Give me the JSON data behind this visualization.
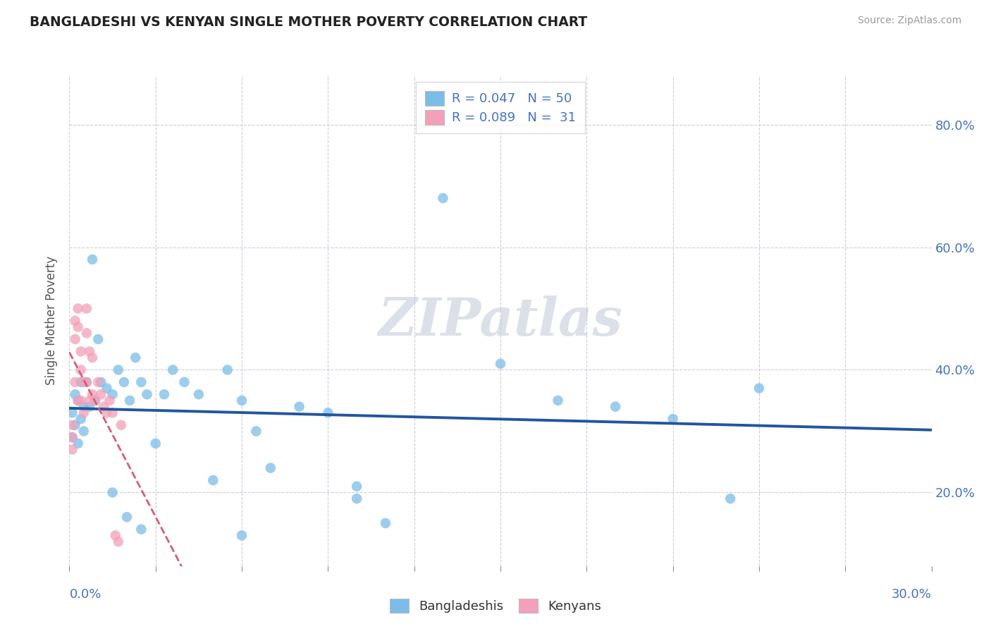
{
  "title": "BANGLADESHI VS KENYAN SINGLE MOTHER POVERTY CORRELATION CHART",
  "source": "Source: ZipAtlas.com",
  "ylabel": "Single Mother Poverty",
  "yticks": [
    0.2,
    0.4,
    0.6,
    0.8
  ],
  "xlim": [
    0.0,
    0.3
  ],
  "ylim": [
    0.08,
    0.88
  ],
  "blue_color": "#7BBDE8",
  "pink_color": "#F4A0B8",
  "blue_line_color": "#2255A0",
  "pink_line_color": "#D06070",
  "pink_line_style": "--",
  "watermark": "ZIPatlas",
  "R_blue": 0.047,
  "N_blue": 50,
  "R_pink": 0.089,
  "N_pink": 31,
  "blue_x": [
    0.001,
    0.001,
    0.002,
    0.002,
    0.003,
    0.003,
    0.004,
    0.004,
    0.005,
    0.005,
    0.006,
    0.007,
    0.008,
    0.009,
    0.01,
    0.011,
    0.013,
    0.015,
    0.017,
    0.019,
    0.021,
    0.023,
    0.025,
    0.027,
    0.03,
    0.033,
    0.036,
    0.04,
    0.045,
    0.05,
    0.055,
    0.06,
    0.065,
    0.07,
    0.08,
    0.09,
    0.1,
    0.11,
    0.13,
    0.15,
    0.17,
    0.19,
    0.21,
    0.23,
    0.015,
    0.02,
    0.025,
    0.06,
    0.1,
    0.24
  ],
  "blue_y": [
    0.33,
    0.29,
    0.36,
    0.31,
    0.35,
    0.28,
    0.38,
    0.32,
    0.34,
    0.3,
    0.38,
    0.34,
    0.58,
    0.35,
    0.45,
    0.38,
    0.37,
    0.36,
    0.4,
    0.38,
    0.35,
    0.42,
    0.38,
    0.36,
    0.28,
    0.36,
    0.4,
    0.38,
    0.36,
    0.22,
    0.4,
    0.35,
    0.3,
    0.24,
    0.34,
    0.33,
    0.21,
    0.15,
    0.68,
    0.41,
    0.35,
    0.34,
    0.32,
    0.19,
    0.2,
    0.16,
    0.14,
    0.13,
    0.19,
    0.37
  ],
  "pink_x": [
    0.001,
    0.001,
    0.001,
    0.002,
    0.002,
    0.002,
    0.003,
    0.003,
    0.003,
    0.004,
    0.004,
    0.004,
    0.005,
    0.005,
    0.006,
    0.006,
    0.006,
    0.007,
    0.007,
    0.008,
    0.008,
    0.009,
    0.01,
    0.011,
    0.012,
    0.013,
    0.014,
    0.015,
    0.016,
    0.017,
    0.018
  ],
  "pink_y": [
    0.31,
    0.29,
    0.27,
    0.48,
    0.45,
    0.38,
    0.5,
    0.47,
    0.35,
    0.43,
    0.4,
    0.35,
    0.38,
    0.33,
    0.5,
    0.46,
    0.38,
    0.43,
    0.35,
    0.42,
    0.36,
    0.35,
    0.38,
    0.36,
    0.34,
    0.33,
    0.35,
    0.33,
    0.13,
    0.12,
    0.31
  ]
}
